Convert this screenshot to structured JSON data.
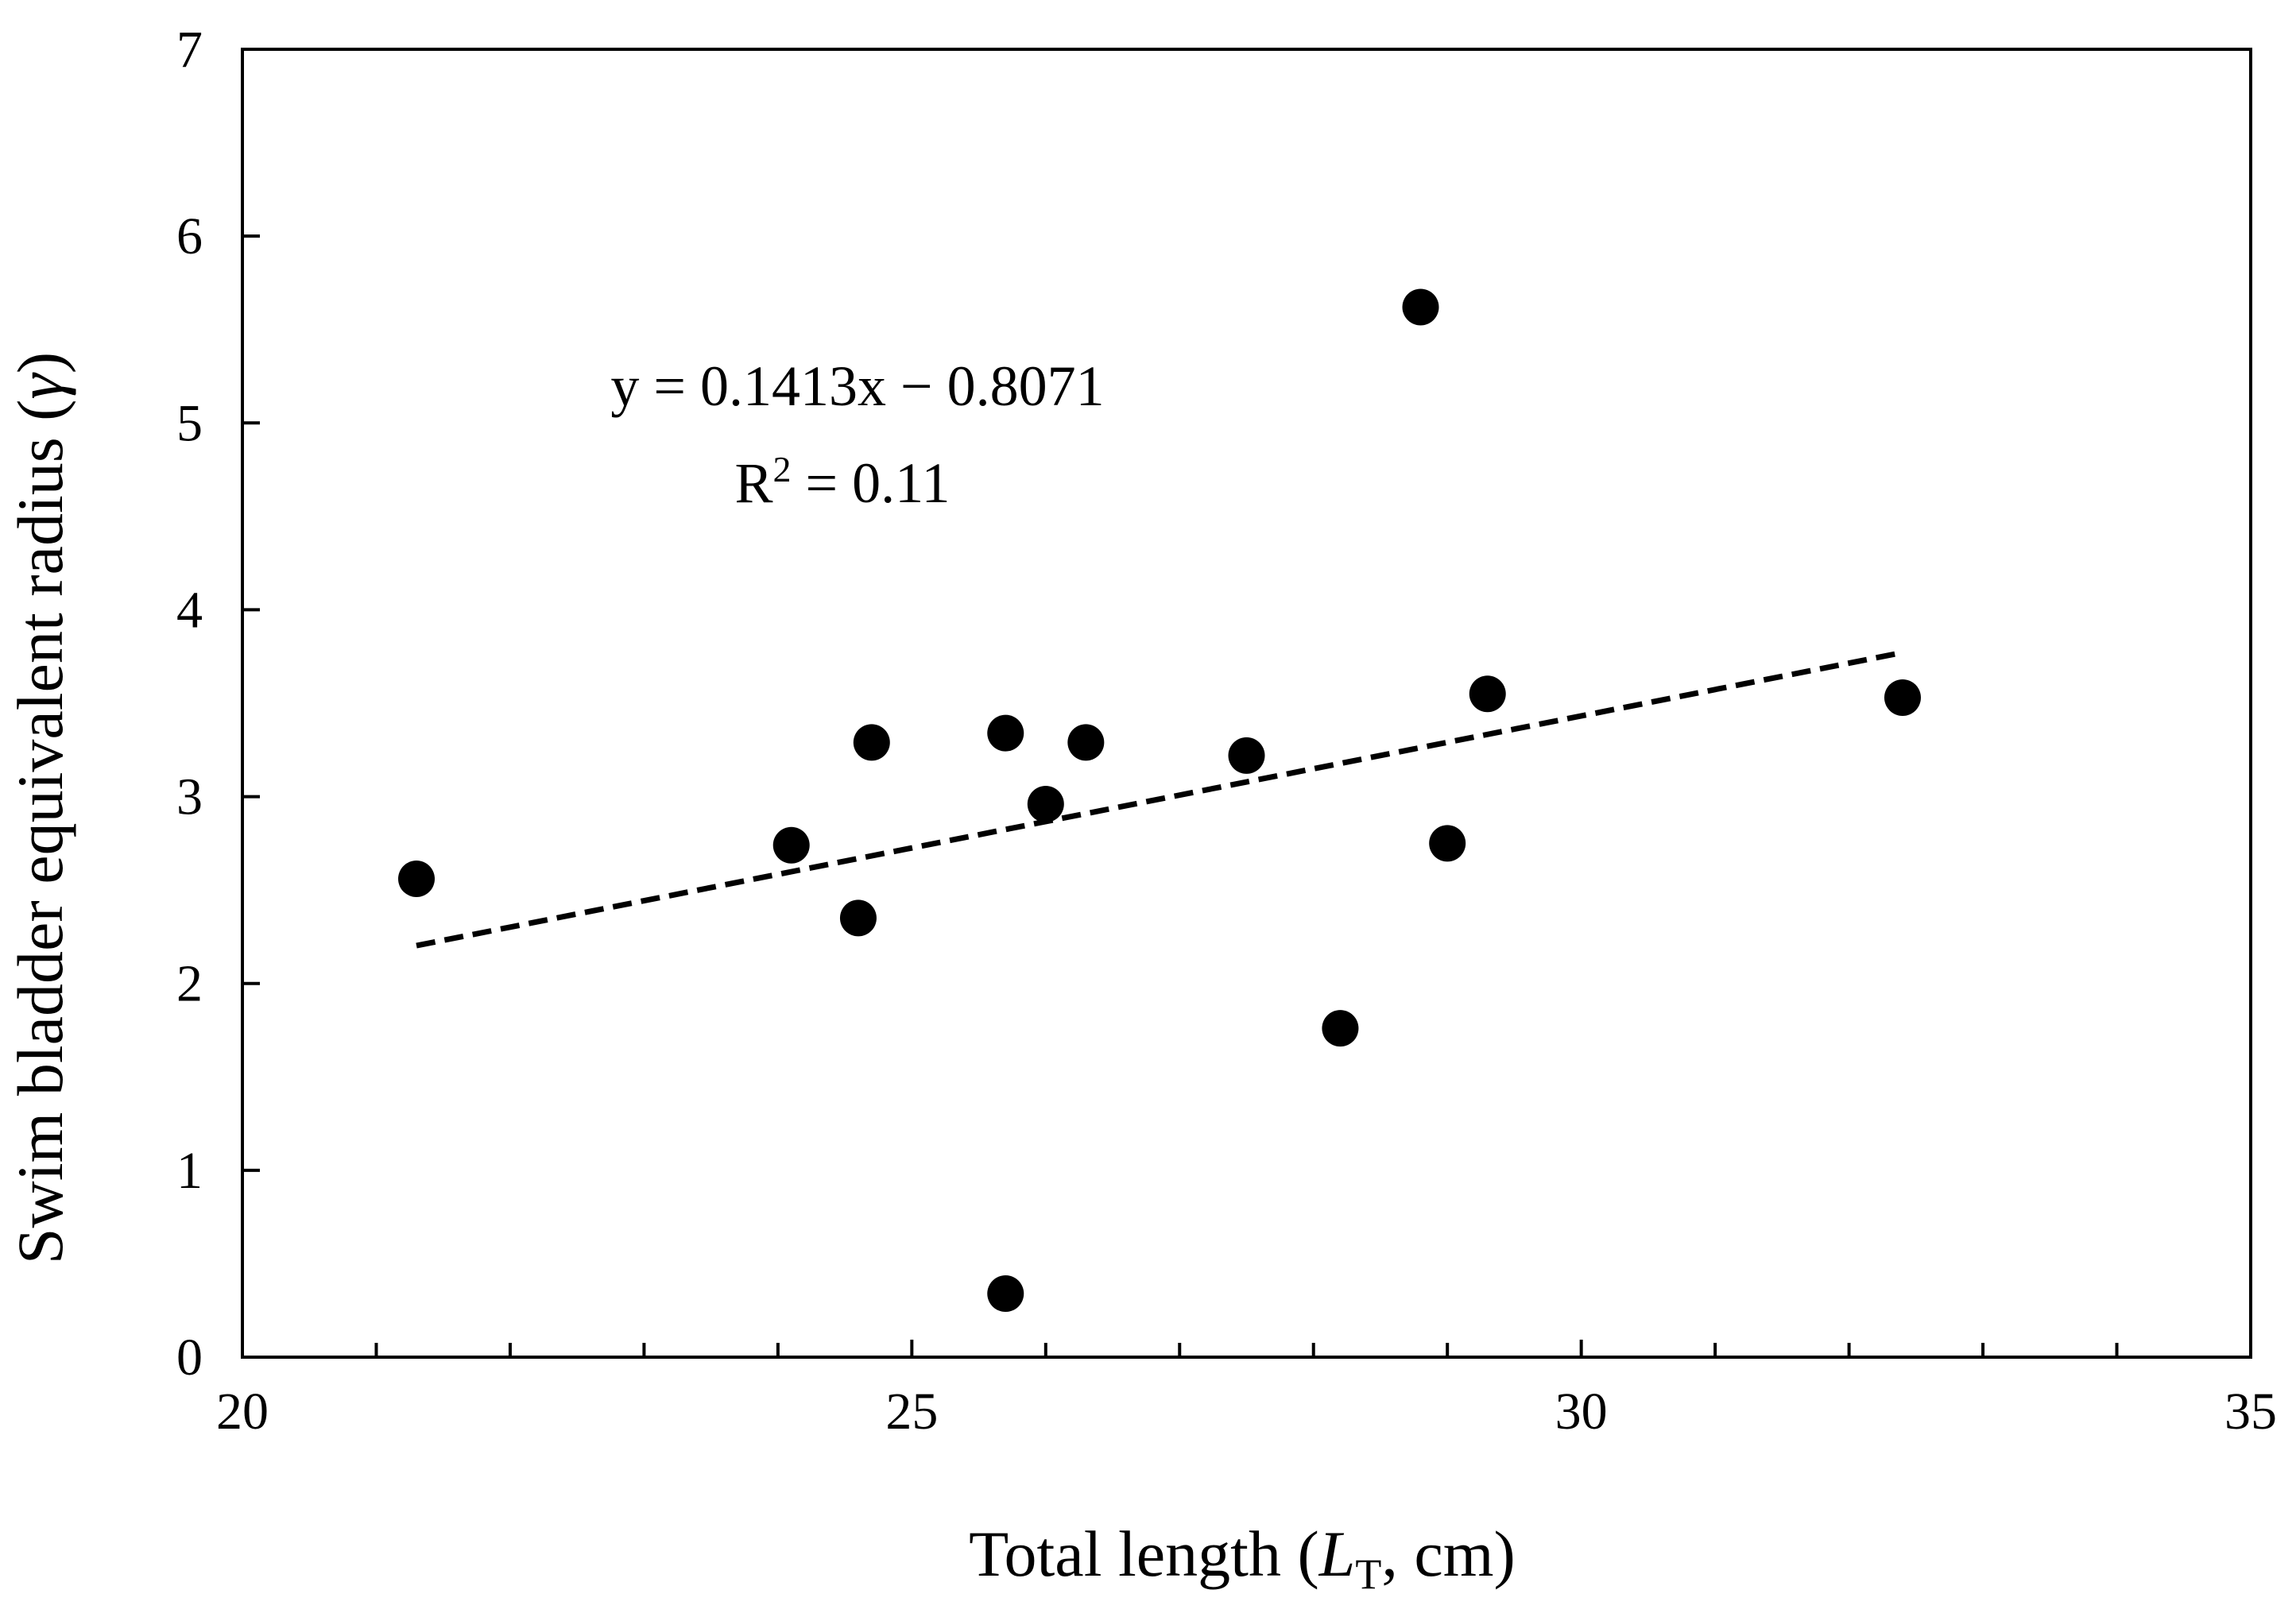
{
  "chart_data": {
    "type": "scatter",
    "title": "",
    "xlabel": {
      "prefix": "Total length (",
      "symbol": "L",
      "subscript": "T",
      "suffix": ", cm)"
    },
    "ylabel": {
      "prefix": "Swim bladder equivalent radius (",
      "symbol": "γ",
      "suffix": ")"
    },
    "xlim": [
      20,
      35
    ],
    "ylim": [
      0,
      7
    ],
    "x_major_ticks": [
      20,
      25,
      30,
      35
    ],
    "x_minor_ticks": [
      21,
      22,
      23,
      24,
      26,
      27,
      28,
      29,
      31,
      32,
      33,
      34
    ],
    "y_major_ticks": [
      0,
      1,
      2,
      3,
      4,
      5,
      6,
      7
    ],
    "x_tick_labels": [
      "20",
      "25",
      "30",
      "35"
    ],
    "y_tick_labels": [
      "0",
      "1",
      "2",
      "3",
      "4",
      "5",
      "6",
      "7"
    ],
    "grid": false,
    "series": [
      {
        "points": [
          {
            "x": 21.3,
            "y": 2.56
          },
          {
            "x": 24.1,
            "y": 2.74
          },
          {
            "x": 24.6,
            "y": 2.35
          },
          {
            "x": 24.7,
            "y": 3.29
          },
          {
            "x": 25.7,
            "y": 3.34
          },
          {
            "x": 25.7,
            "y": 0.34
          },
          {
            "x": 26.0,
            "y": 2.96
          },
          {
            "x": 26.3,
            "y": 3.29
          },
          {
            "x": 27.5,
            "y": 3.22
          },
          {
            "x": 28.2,
            "y": 1.76
          },
          {
            "x": 28.8,
            "y": 5.62
          },
          {
            "x": 29.0,
            "y": 2.75
          },
          {
            "x": 29.3,
            "y": 3.55
          },
          {
            "x": 32.4,
            "y": 3.53
          }
        ],
        "marker": "filled-circle",
        "color": "#000000"
      }
    ],
    "trendline": {
      "slope": 0.1413,
      "intercept": -0.8071,
      "x_range": [
        21.3,
        32.4
      ],
      "style": "dashed",
      "color": "#000000"
    },
    "annotations": {
      "equation": "y = 0.1413x − 0.8071",
      "r_squared": {
        "prefix": "R",
        "superscript": "2",
        "suffix": " = 0.11"
      }
    }
  }
}
